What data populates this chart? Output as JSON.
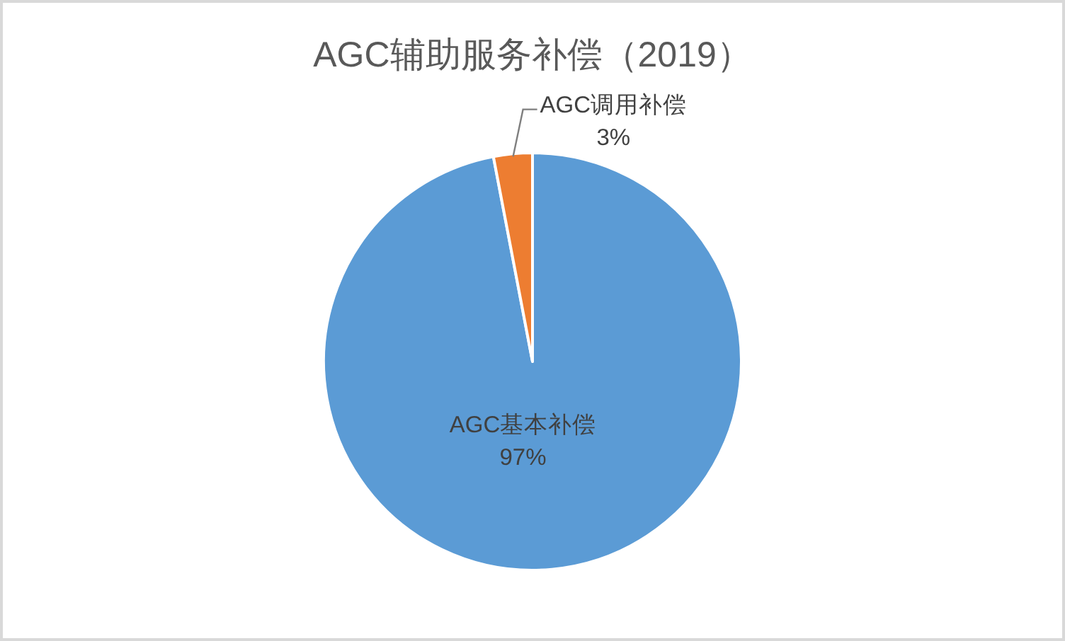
{
  "chart_data": {
    "type": "pie",
    "title": "AGC辅助服务补偿（2019）",
    "categories": [
      "AGC基本补偿",
      "AGC调用补偿"
    ],
    "values": [
      97,
      3
    ],
    "colors": [
      "#5b9bd5",
      "#ed7d31"
    ],
    "value_labels": [
      "97%",
      "3%"
    ]
  }
}
